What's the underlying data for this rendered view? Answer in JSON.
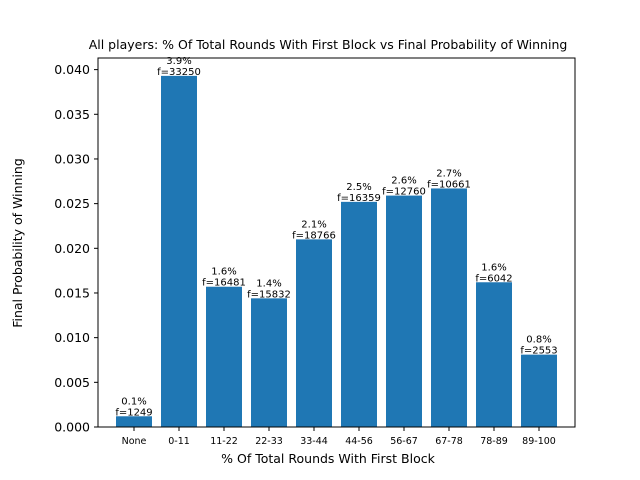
{
  "chart_data": {
    "type": "bar",
    "title": "All players: % Of Total Rounds With First Block vs Final Probability of Winning",
    "xlabel": "% Of Total Rounds With First Block",
    "ylabel": "Final Probability of Winning",
    "categories": [
      "None",
      "0-11",
      "11-22",
      "22-33",
      "33-44",
      "44-56",
      "56-67",
      "67-78",
      "78-89",
      "89-100"
    ],
    "values": [
      0.0012,
      0.0393,
      0.0157,
      0.0144,
      0.021,
      0.0252,
      0.0259,
      0.0267,
      0.0162,
      0.0081
    ],
    "pct_labels": [
      "0.1%",
      "3.9%",
      "1.6%",
      "1.4%",
      "2.1%",
      "2.5%",
      "2.6%",
      "2.7%",
      "1.6%",
      "0.8%"
    ],
    "freq_labels": [
      "f=1249",
      "f=33250",
      "f=16481",
      "f=15832",
      "f=18766",
      "f=16359",
      "f=12760",
      "f=10661",
      "f=6042",
      "f=2553"
    ],
    "yticks": [
      0.0,
      0.005,
      0.01,
      0.015,
      0.02,
      0.025,
      0.03,
      0.035,
      0.04
    ],
    "ytick_labels": [
      "0.000",
      "0.005",
      "0.010",
      "0.015",
      "0.020",
      "0.025",
      "0.030",
      "0.035",
      "0.040"
    ],
    "ylim": [
      0,
      0.0413
    ],
    "grid": false,
    "bar_color": "#1f77b4"
  }
}
